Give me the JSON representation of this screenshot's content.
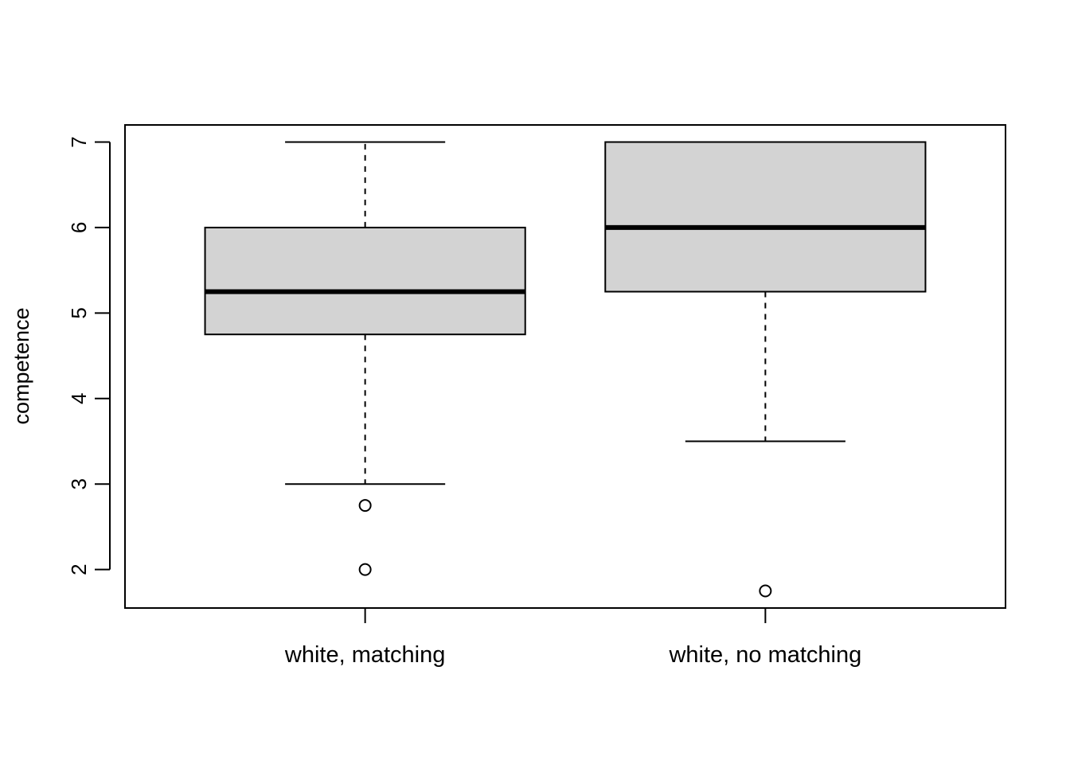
{
  "chart_data": {
    "type": "boxplot",
    "title": "",
    "xlabel": "",
    "ylabel": "competence",
    "ylim": [
      1.55,
      7.2
    ],
    "yticks": [
      2,
      3,
      4,
      5,
      6,
      7
    ],
    "grid": false,
    "legend": "none",
    "box_fill": "#d3d3d3",
    "categories": [
      "white, matching",
      "white, no matching"
    ],
    "boxes": [
      {
        "category": "white, matching",
        "whisker_low": 3,
        "q1": 4.75,
        "median": 5.25,
        "q3": 6,
        "whisker_high": 7,
        "outliers": [
          2.75,
          2
        ]
      },
      {
        "category": "white, no matching",
        "whisker_low": 3.5,
        "q1": 5.25,
        "median": 6,
        "q3": 7,
        "whisker_high": 7,
        "outliers": [
          1.75
        ]
      }
    ]
  }
}
